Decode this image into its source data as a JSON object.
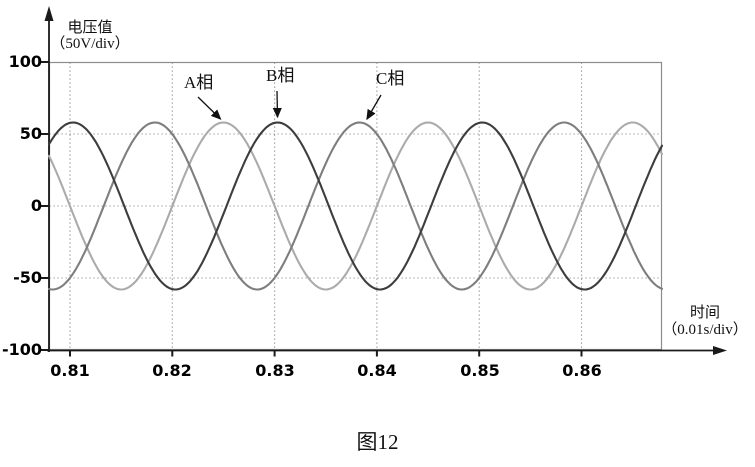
{
  "figure": {
    "caption": "图12",
    "y_axis_title_line1": "电压值",
    "y_axis_title_line2": "（50V/div）",
    "x_axis_title_line1": "时间",
    "x_axis_title_line2": "（0.01s/div）"
  },
  "chart_data": {
    "type": "line",
    "title": "",
    "ylabel": "电压值 (50V/div)",
    "xlabel": "时间 (0.01s/div)",
    "x_start_s": 0.80795,
    "x_end_s": 0.86787,
    "ylim": [
      -100,
      100
    ],
    "y_ticks": [
      100,
      50,
      0,
      -50,
      -100
    ],
    "y_tick_labels": [
      "100",
      "50",
      "0",
      "-50",
      "-100"
    ],
    "x_ticks": [
      0.81,
      0.82,
      0.83,
      0.84,
      0.85,
      0.86
    ],
    "x_tick_labels": [
      "0.81",
      "0.82",
      "0.83",
      "0.84",
      "0.85",
      "0.86"
    ],
    "grid": true,
    "gridline_color": "#8c8c8c",
    "axis_color": "#1a1a1a",
    "legend_position": "inline-annotations",
    "series": [
      {
        "name": "A相",
        "color": "#ababab",
        "amplitude_V": 58,
        "period_s": 0.02,
        "peak_time_s": 0.825
      },
      {
        "name": "B相",
        "color": "#3d3d3d",
        "amplitude_V": 58,
        "period_s": 0.02,
        "peak_time_s": 0.8303
      },
      {
        "name": "C相",
        "color": "#7e7e7e",
        "amplitude_V": 58,
        "period_s": 0.02,
        "peak_time_s": 0.8183
      }
    ],
    "annotations": [
      {
        "text": "A相",
        "series": "A相",
        "points_to_peak_t": 0.825
      },
      {
        "text": "B相",
        "series": "B相",
        "points_to_peak_t": 0.8303
      },
      {
        "text": "C相",
        "series": "C相",
        "points_to_peak_t": 0.8383
      }
    ]
  }
}
